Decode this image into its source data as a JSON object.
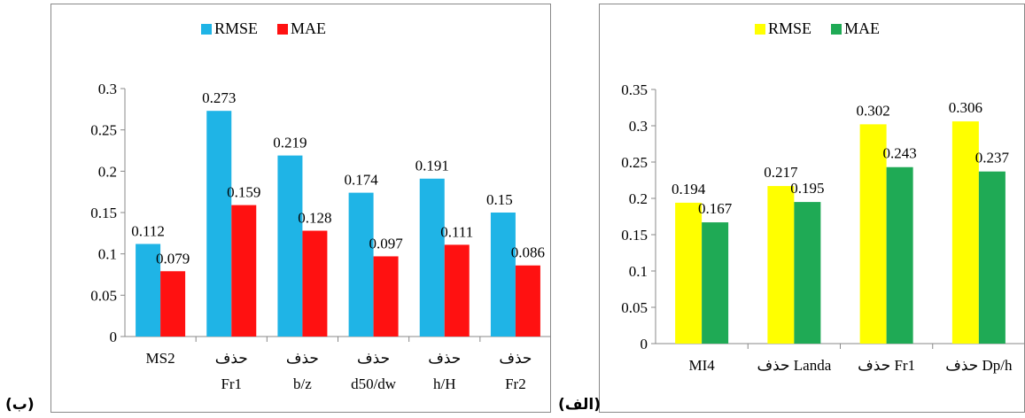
{
  "captions": {
    "left": "(ب)",
    "right": "(الف)"
  },
  "chart_data": [
    {
      "id": "b",
      "type": "bar",
      "ylim": [
        0,
        0.3
      ],
      "yticks": [
        "0",
        "0.05",
        "0.1",
        "0.15",
        "0.2",
        "0.25",
        "0.3"
      ],
      "categories": [
        [
          "MS2"
        ],
        [
          "حذف",
          "Fr1"
        ],
        [
          "حذف",
          "b/z"
        ],
        [
          "حذف",
          "d50/dw"
        ],
        [
          "حذف",
          "h/H"
        ],
        [
          "حذف",
          "Fr2"
        ]
      ],
      "series": [
        {
          "name": "RMSE",
          "color": "#1fb4e6",
          "values": [
            0.112,
            0.273,
            0.219,
            0.174,
            0.191,
            0.15
          ],
          "labels": [
            "0.112",
            "0.273",
            "0.219",
            "0.174",
            "0.191",
            "0.15"
          ]
        },
        {
          "name": "MAE",
          "color": "#ff1111",
          "values": [
            0.079,
            0.159,
            0.128,
            0.097,
            0.111,
            0.086
          ],
          "labels": [
            "0.079",
            "0.159",
            "0.128",
            "0.097",
            "0.111",
            "0.086"
          ]
        }
      ],
      "legend": "top-center",
      "grid": false
    },
    {
      "id": "a",
      "type": "bar",
      "ylim": [
        0,
        0.35
      ],
      "yticks": [
        "0",
        "0.05",
        "0.1",
        "0.15",
        "0.2",
        "0.25",
        "0.3",
        "0.35"
      ],
      "categories": [
        [
          "MI4"
        ],
        [
          "حذف Landa"
        ],
        [
          "حذف Fr1"
        ],
        [
          "حذف Dp/h"
        ]
      ],
      "series": [
        {
          "name": "RMSE",
          "color": "#ffff00",
          "values": [
            0.194,
            0.217,
            0.302,
            0.306
          ],
          "labels": [
            "0.194",
            "0.217",
            "0.302",
            "0.306"
          ]
        },
        {
          "name": "MAE",
          "color": "#1faa55",
          "values": [
            0.167,
            0.195,
            0.243,
            0.237
          ],
          "labels": [
            "0.167",
            "0.195",
            "0.243",
            "0.237"
          ]
        }
      ],
      "legend": "top-center",
      "grid": false
    }
  ]
}
